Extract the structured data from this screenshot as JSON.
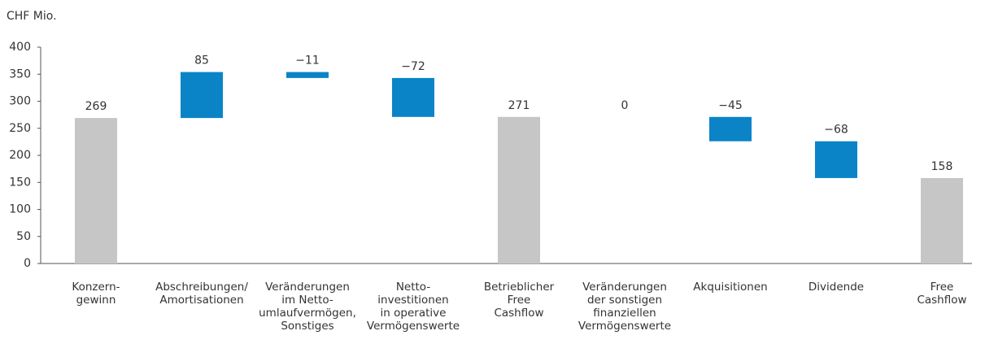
{
  "chart_data": {
    "type": "waterfall",
    "ylabel": "CHF Mio.",
    "categories": [
      "Konzern-\ngewinn",
      "Abschreibungen/\nAmortisationen",
      "Veränderungen\nim Netto-\numlaufvermögen,\nSonstiges",
      "Netto-\ninvestitionen\nin operative\nVermögenswerte",
      "Betrieblicher\nFree\nCashflow",
      "Veränderungen\nder sonstigen\nfinanziellen\nVermögenswerte",
      "Akquisitionen",
      "Dividende",
      "Free\nCashflow"
    ],
    "values": [
      269,
      85,
      -11,
      -72,
      271,
      0,
      -45,
      -68,
      158
    ],
    "value_labels": [
      "269",
      "85",
      "−11",
      "−72",
      "271",
      "0",
      "−45",
      "−68",
      "158"
    ],
    "measure": [
      "total",
      "relative",
      "relative",
      "relative",
      "total",
      "relative",
      "relative",
      "relative",
      "total"
    ],
    "total_color": "#c6c6c6",
    "delta_color": "#0a84c6",
    "ylim": [
      0,
      400
    ],
    "yticks": [
      0,
      50,
      100,
      150,
      200,
      250,
      300,
      350,
      400
    ],
    "grid": false
  }
}
